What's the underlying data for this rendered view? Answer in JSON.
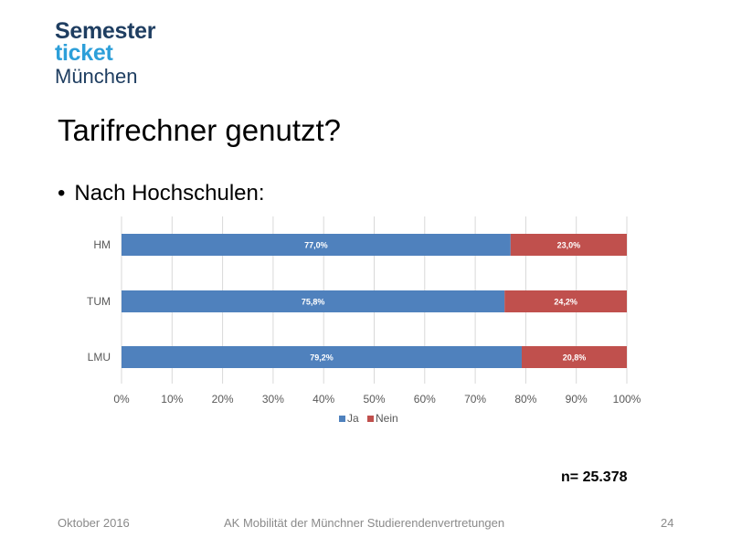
{
  "logo": {
    "line1": "Semester",
    "line2": "ticket",
    "line3": "München"
  },
  "slide": {
    "title": "Tarifrechner genutzt?",
    "bullet": "Nach Hochschulen:",
    "n_label": "n= 25.378"
  },
  "footer": {
    "date": "Oktober 2016",
    "center": "AK Mobilität der Münchner  Studierendenvertretungen",
    "page": "24"
  },
  "colors": {
    "ja": "#4f81bd",
    "nein": "#c0504d",
    "grid": "#d9d9d9",
    "axis_text": "#595959"
  },
  "chart_data": {
    "type": "bar",
    "orientation": "horizontal",
    "stacked": true,
    "categories": [
      "HM",
      "TUM",
      "LMU"
    ],
    "series": [
      {
        "name": "Ja",
        "values": [
          77.0,
          75.8,
          79.2
        ],
        "labels": [
          "77,0%",
          "75,8%",
          "79,2%"
        ]
      },
      {
        "name": "Nein",
        "values": [
          23.0,
          24.2,
          20.8
        ],
        "labels": [
          "23,0%",
          "24,2%",
          "20,8%"
        ]
      }
    ],
    "xlim": [
      0,
      100
    ],
    "xticks": [
      "0%",
      "10%",
      "20%",
      "30%",
      "40%",
      "50%",
      "60%",
      "70%",
      "80%",
      "90%",
      "100%"
    ],
    "grid": true,
    "legend": "bottom"
  }
}
